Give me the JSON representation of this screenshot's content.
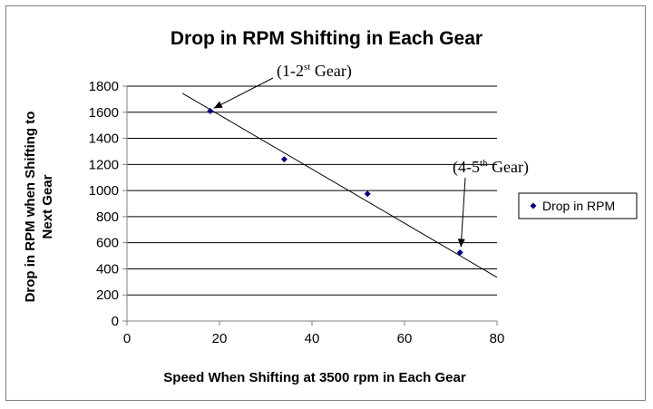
{
  "chart_data": {
    "type": "scatter",
    "title": "Drop in RPM Shifting in Each Gear",
    "xlabel": "Speed When Shifting at 3500 rpm in Each Gear",
    "ylabel_lines": [
      "Drop in RPM when Shifting to",
      "Next Gear"
    ],
    "xlim": [
      0,
      80
    ],
    "ylim": [
      0,
      1800
    ],
    "xticks": [
      0,
      20,
      40,
      60,
      80
    ],
    "yticks": [
      0,
      200,
      400,
      600,
      800,
      1000,
      1200,
      1400,
      1600,
      1800
    ],
    "grid": "horizontal",
    "legend": "right",
    "series": [
      {
        "name": "Drop in RPM",
        "color": "#000080",
        "x": [
          18,
          34,
          52,
          72
        ],
        "y": [
          1610,
          1240,
          975,
          525
        ]
      }
    ],
    "trendline": {
      "color": "#000000",
      "x": [
        12,
        80
      ],
      "y": [
        1745,
        335
      ]
    },
    "annotations": [
      {
        "pre": "(1-2",
        "sup": "st",
        "post": " Gear)",
        "point": [
          18,
          1610
        ]
      },
      {
        "pre": "(4-5",
        "sup": "th",
        "post": " Gear)",
        "point": [
          72,
          525
        ]
      }
    ]
  }
}
